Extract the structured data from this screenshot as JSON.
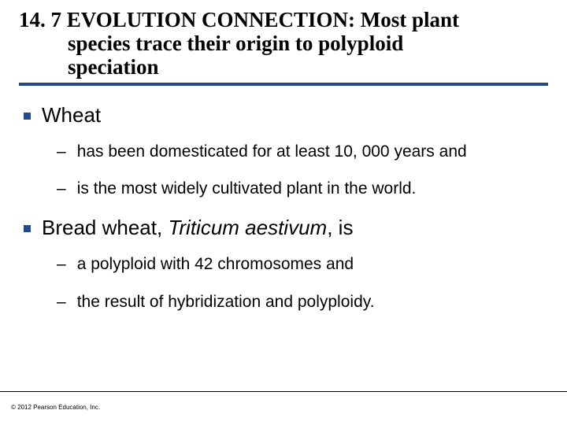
{
  "title": {
    "number": "14. 7",
    "prefix": "EVOLUTION CONNECTION:",
    "rest_line1": " Most plant",
    "line2": "species trace their origin to polyploid",
    "line3": "speciation",
    "rule_color": "#254a8a",
    "font_family": "Times New Roman",
    "font_size": 27,
    "font_weight": "bold"
  },
  "bullets": {
    "square_color": "#254a8a",
    "items": [
      {
        "text": "Wheat",
        "sub": [
          {
            "text": "has been domesticated for at least 10, 000 years and"
          },
          {
            "text": "is the most widely cultivated plant in the world."
          }
        ]
      },
      {
        "text_before": "Bread wheat, ",
        "text_italic": "Triticum aestivum",
        "text_after": ", is",
        "sub": [
          {
            "text": "a polyploid with 42 chromosomes and"
          },
          {
            "text": "the result of hybridization and polyploidy."
          }
        ]
      }
    ]
  },
  "footer": {
    "text": "© 2012 Pearson Education, Inc."
  },
  "typography": {
    "body_font": "Arial",
    "level1_fontsize": 26,
    "level2_fontsize": 21
  },
  "colors": {
    "background": "#ffffff",
    "text": "#000000",
    "accent": "#254a8a"
  }
}
